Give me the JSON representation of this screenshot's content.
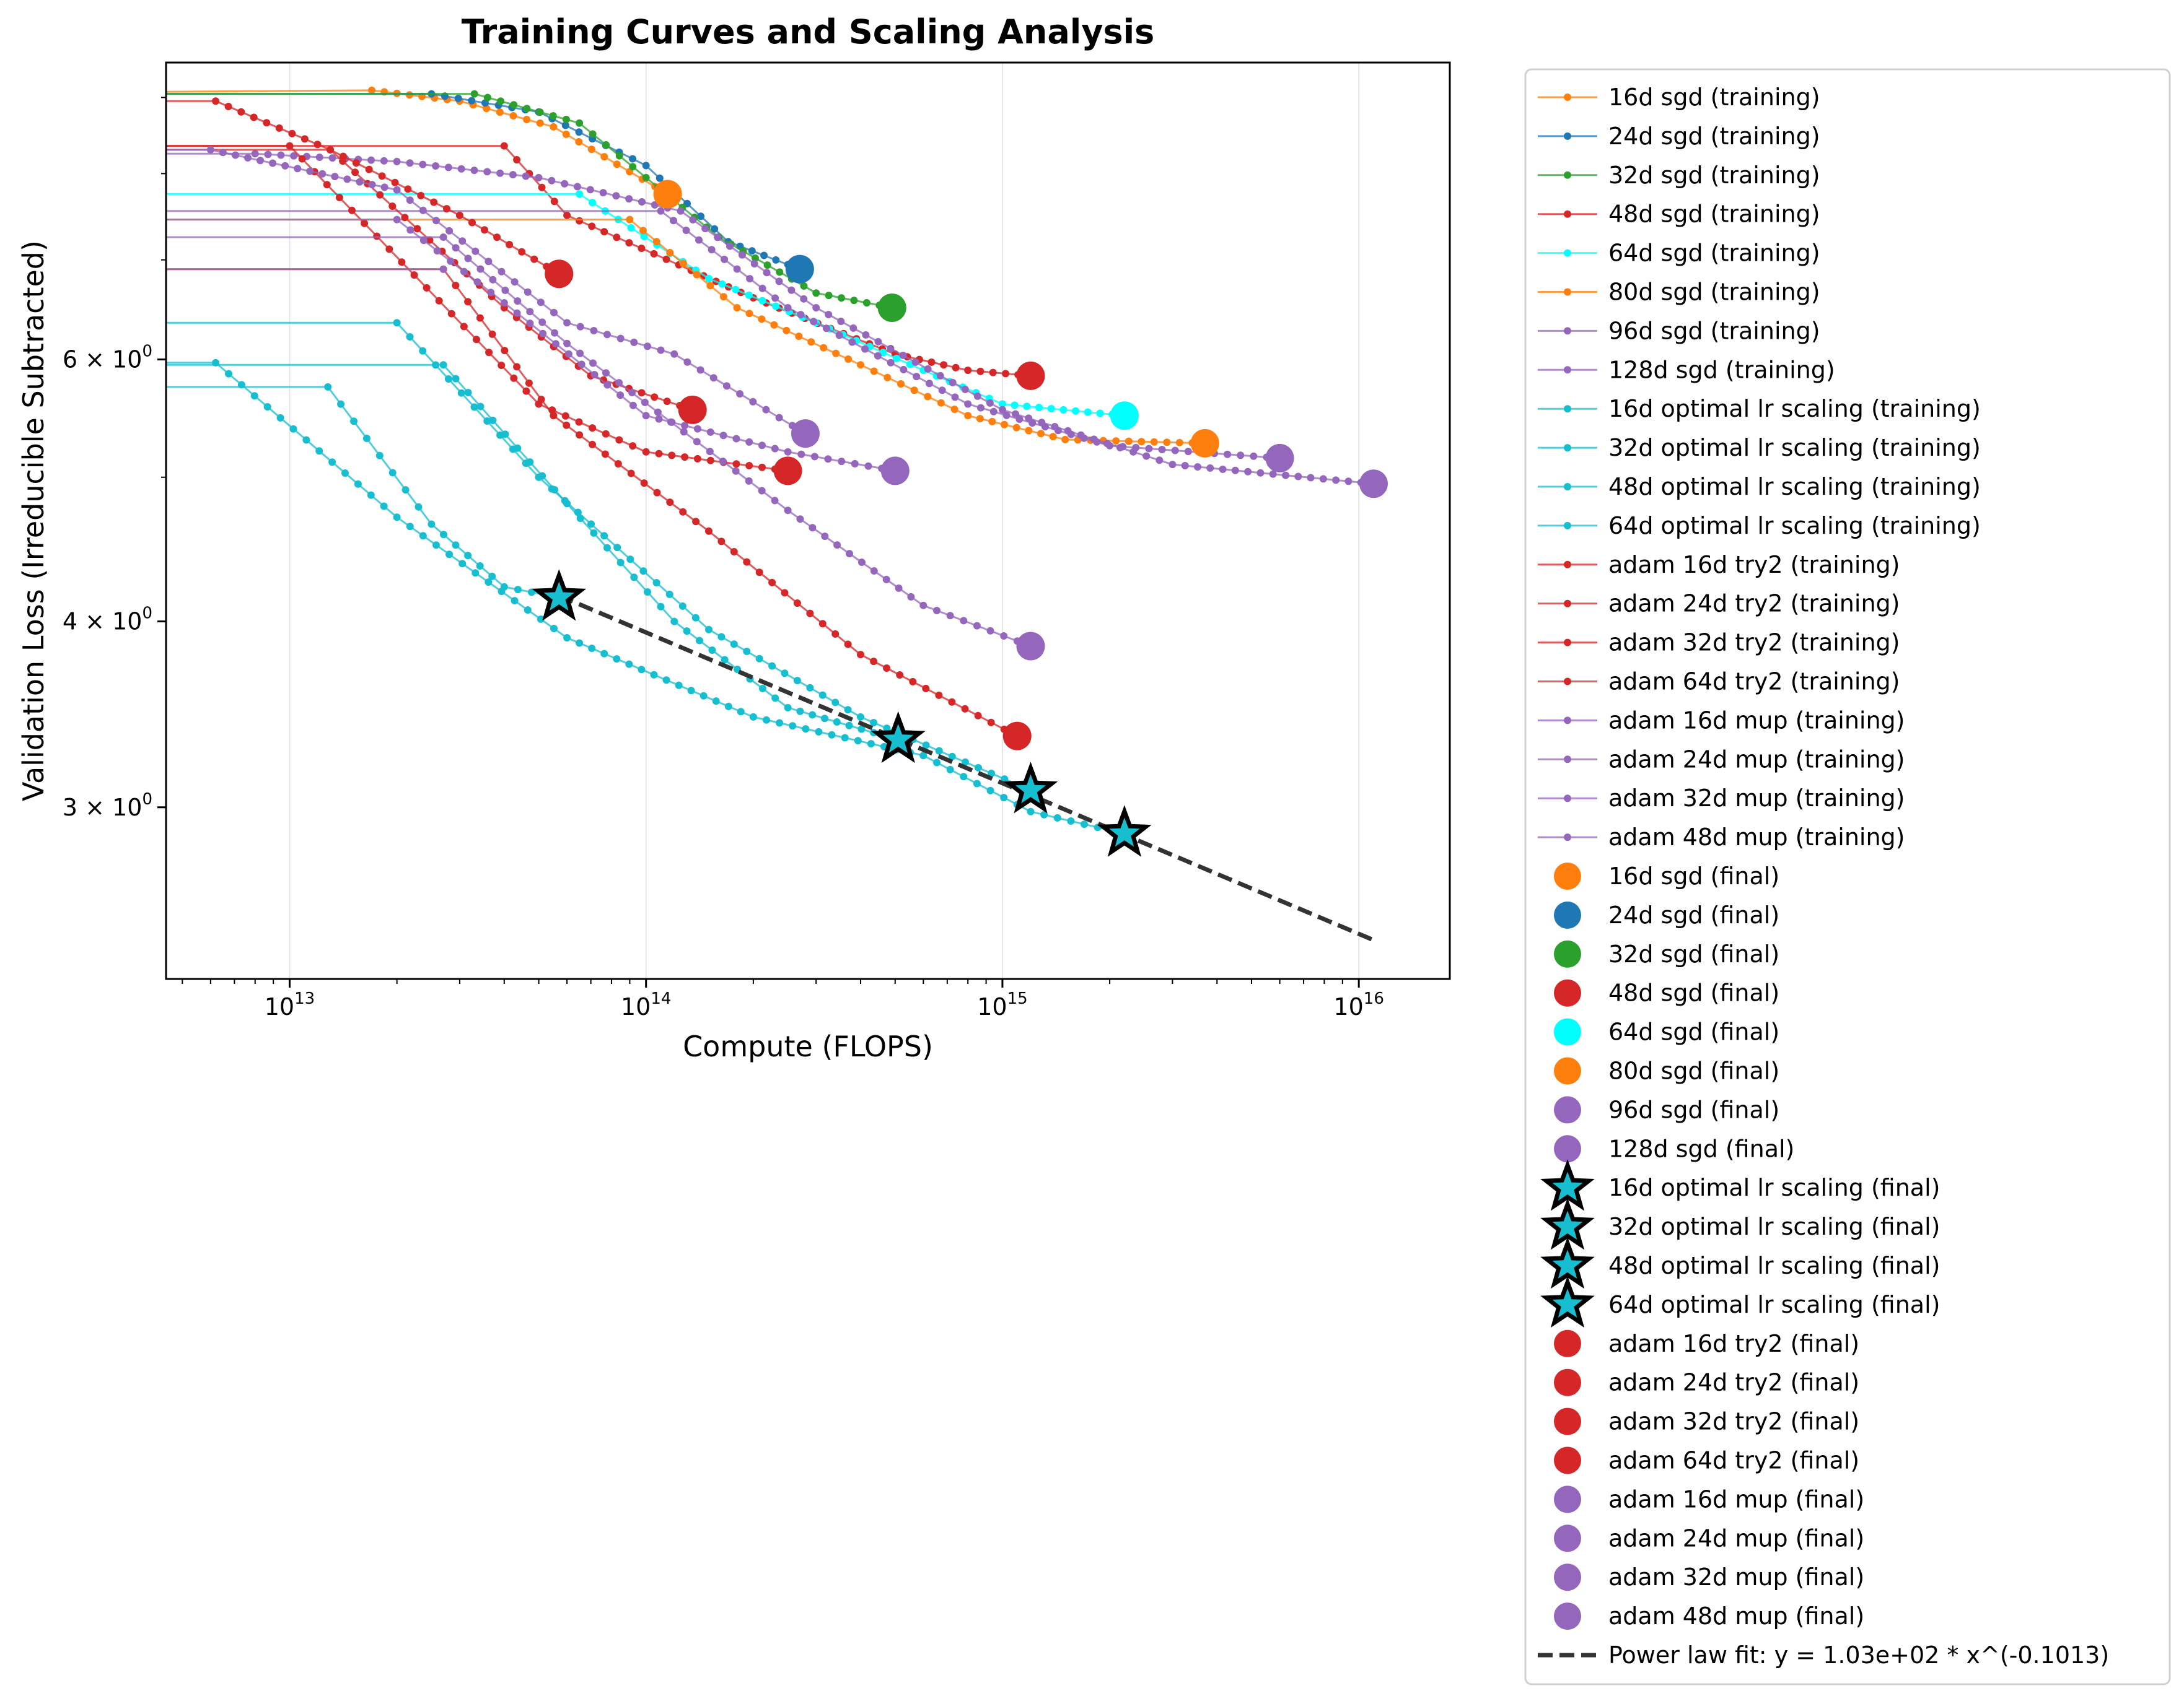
{
  "chart_data": {
    "type": "line",
    "title": "Training Curves and Scaling Analysis",
    "xlabel": "Compute (FLOPS)",
    "ylabel": "Validation Loss (Irreducible Subtracted)",
    "xscale": "log",
    "yscale": "log",
    "xlim": [
      4500000000000.0,
      1.8e+16
    ],
    "ylim": [
      2.3,
      9.5
    ],
    "grid": "x-only",
    "legend_position": "outside-right",
    "x_ticks": [
      {
        "value": 10000000000000.0,
        "base": "10",
        "exp": "13"
      },
      {
        "value": 100000000000000.0,
        "base": "10",
        "exp": "14"
      },
      {
        "value": 1000000000000000.0,
        "base": "10",
        "exp": "15"
      },
      {
        "value": 1e+16,
        "base": "10",
        "exp": "16"
      }
    ],
    "y_ticks": [
      {
        "value": 3,
        "mant": "3",
        "base": "10",
        "exp": "0"
      },
      {
        "value": 4,
        "mant": "4",
        "base": "10",
        "exp": "0"
      },
      {
        "value": 6,
        "mant": "6",
        "base": "10",
        "exp": "0"
      }
    ],
    "y_minor_ticks": [
      5,
      7,
      8,
      9
    ],
    "colors": {
      "orange": "#ff7f0e",
      "blue": "#1f77b4",
      "green": "#2ca02c",
      "red": "#d62728",
      "cyan": "#00ffff",
      "purple": "#9467bd",
      "teal": "#17becf",
      "fit": "#333333"
    },
    "series": [
      {
        "name": "16d sgd (training)",
        "color": "#ff7f0e",
        "anchors": [
          [
            4500000000000.0,
            9.08
          ],
          [
            17000000000000.0,
            9.1
          ],
          [
            30000000000000.0,
            8.95
          ],
          [
            55000000000000.0,
            8.6
          ],
          [
            115000000000000.0,
            7.75
          ]
        ],
        "final": [
          115000000000000.0,
          7.75
        ],
        "final_label": "16d sgd (final)"
      },
      {
        "name": "24d sgd (training)",
        "color": "#1f77b4",
        "anchors": [
          [
            4500000000000.0,
            9.05
          ],
          [
            25000000000000.0,
            9.05
          ],
          [
            50000000000000.0,
            8.8
          ],
          [
            100000000000000.0,
            8.1
          ],
          [
            170000000000000.0,
            7.2
          ],
          [
            270000000000000.0,
            6.9
          ]
        ],
        "final": [
          270000000000000.0,
          6.9
        ],
        "final_label": "24d sgd (final)"
      },
      {
        "name": "32d sgd (training)",
        "color": "#2ca02c",
        "anchors": [
          [
            4500000000000.0,
            9.05
          ],
          [
            33000000000000.0,
            9.05
          ],
          [
            65000000000000.0,
            8.65
          ],
          [
            100000000000000.0,
            7.95
          ],
          [
            160000000000000.0,
            7.25
          ],
          [
            300000000000000.0,
            6.65
          ],
          [
            490000000000000.0,
            6.5
          ]
        ],
        "final": [
          490000000000000.0,
          6.5
        ],
        "final_label": "32d sgd (final)"
      },
      {
        "name": "48d sgd (training)",
        "color": "#d62728",
        "anchors": [
          [
            4500000000000.0,
            8.35
          ],
          [
            40000000000000.0,
            8.35
          ],
          [
            60000000000000.0,
            7.5
          ],
          [
            200000000000000.0,
            6.6
          ],
          [
            500000000000000.0,
            6.05
          ],
          [
            800000000000000.0,
            5.9
          ],
          [
            1200000000000000.0,
            5.85
          ]
        ],
        "final": [
          1200000000000000.0,
          5.85
        ],
        "final_label": "48d sgd (final)"
      },
      {
        "name": "64d sgd (training)",
        "color": "#00ffff",
        "anchors": [
          [
            4500000000000.0,
            7.75
          ],
          [
            65000000000000.0,
            7.75
          ],
          [
            150000000000000.0,
            6.8
          ],
          [
            300000000000000.0,
            6.35
          ],
          [
            600000000000000.0,
            5.9
          ],
          [
            1000000000000000.0,
            5.6
          ],
          [
            2200000000000000.0,
            5.5
          ]
        ],
        "final": [
          2200000000000000.0,
          5.5
        ],
        "final_label": "64d sgd (final)"
      },
      {
        "name": "80d sgd (training)",
        "color": "#ff7f0e",
        "anchors": [
          [
            4500000000000.0,
            7.45
          ],
          [
            90000000000000.0,
            7.45
          ],
          [
            180000000000000.0,
            6.5
          ],
          [
            400000000000000.0,
            5.95
          ],
          [
            800000000000000.0,
            5.5
          ],
          [
            1500000000000000.0,
            5.3
          ],
          [
            3700000000000000.0,
            5.27
          ]
        ],
        "final": [
          3700000000000000.0,
          5.27
        ],
        "final_label": "80d sgd (final)"
      },
      {
        "name": "96d sgd (training)",
        "color": "#9467bd",
        "anchors": [
          [
            4500000000000.0,
            7.55
          ],
          [
            110000000000000.0,
            7.55
          ],
          [
            250000000000000.0,
            6.5
          ],
          [
            800000000000000.0,
            5.6
          ],
          [
            2000000000000000.0,
            5.25
          ],
          [
            6000000000000000.0,
            5.15
          ]
        ],
        "final": [
          6000000000000000.0,
          5.15
        ],
        "final_label": "96d sgd (final)"
      },
      {
        "name": "128d sgd (training)",
        "color": "#9467bd",
        "anchors": [
          [
            4500000000000.0,
            8.25
          ],
          [
            8000000000000.0,
            8.25
          ],
          [
            20000000000000.0,
            8.15
          ],
          [
            50000000000000.0,
            7.95
          ],
          [
            125000000000000.0,
            7.55
          ],
          [
            300000000000000.0,
            6.5
          ],
          [
            1000000000000000.0,
            5.55
          ],
          [
            3000000000000000.0,
            5.1
          ],
          [
            1.1e+16,
            4.95
          ]
        ],
        "final": [
          1.1e+16,
          4.95
        ],
        "final_label": "128d sgd (final)"
      },
      {
        "name": "16d optimal lr scaling (training)",
        "color": "#17becf",
        "anchors": [
          [
            4500000000000.0,
            5.75
          ],
          [
            12800000000000.0,
            5.75
          ],
          [
            25000000000000.0,
            4.65
          ],
          [
            40000000000000.0,
            4.22
          ],
          [
            57000000000000.0,
            4.15
          ]
        ],
        "final": [
          57000000000000.0,
          4.15
        ],
        "final_label": "16d optimal lr scaling (final)"
      },
      {
        "name": "32d optimal lr scaling (training)",
        "color": "#17becf",
        "anchors": [
          [
            4500000000000.0,
            5.95
          ],
          [
            27000000000000.0,
            5.95
          ],
          [
            60000000000000.0,
            4.8
          ],
          [
            120000000000000.0,
            4.0
          ],
          [
            250000000000000.0,
            3.5
          ],
          [
            510000000000000.0,
            3.33
          ]
        ],
        "final": [
          510000000000000.0,
          3.33
        ],
        "final_label": "32d optimal lr scaling (final)"
      },
      {
        "name": "48d optimal lr scaling (training)",
        "color": "#17becf",
        "anchors": [
          [
            4500000000000.0,
            6.35
          ],
          [
            20000000000000.0,
            6.35
          ],
          [
            50000000000000.0,
            5.0
          ],
          [
            150000000000000.0,
            3.95
          ],
          [
            400000000000000.0,
            3.45
          ],
          [
            1200000000000000.0,
            3.08
          ]
        ],
        "final": [
          1200000000000000.0,
          3.08
        ],
        "final_label": "48d optimal lr scaling (final)"
      },
      {
        "name": "64d optimal lr scaling (training)",
        "color": "#17becf",
        "anchors": [
          [
            4500000000000.0,
            5.97
          ],
          [
            6200000000000.0,
            5.97
          ],
          [
            20000000000000.0,
            4.7
          ],
          [
            60000000000000.0,
            3.9
          ],
          [
            200000000000000.0,
            3.45
          ],
          [
            600000000000000.0,
            3.25
          ],
          [
            1200000000000000.0,
            2.98
          ],
          [
            2200000000000000.0,
            2.88
          ]
        ],
        "final": [
          2200000000000000.0,
          2.88
        ],
        "final_label": "64d optimal lr scaling (final)"
      },
      {
        "name": "adam 16d try2 (training)",
        "color": "#d62728",
        "anchors": [
          [
            4500000000000.0,
            8.95
          ],
          [
            6200000000000.0,
            8.95
          ],
          [
            13000000000000.0,
            8.3
          ],
          [
            30000000000000.0,
            7.5
          ],
          [
            57000000000000.0,
            6.85
          ]
        ],
        "final": [
          57000000000000.0,
          6.85
        ],
        "final_label": "adam 16d try2 (final)"
      },
      {
        "name": "adam 24d try2 (training)",
        "color": "#d62728",
        "anchors": [
          [
            4500000000000.0,
            8.3
          ],
          [
            13000000000000.0,
            8.3
          ],
          [
            40000000000000.0,
            6.5
          ],
          [
            70000000000000.0,
            5.85
          ],
          [
            135000000000000.0,
            5.55
          ]
        ],
        "final": [
          135000000000000.0,
          5.55
        ],
        "final_label": "adam 24d try2 (final)"
      },
      {
        "name": "adam 32d try2 (training)",
        "color": "#d62728",
        "anchors": [
          [
            4500000000000.0,
            8.35
          ],
          [
            10000000000000.0,
            8.35
          ],
          [
            50000000000000.0,
            5.6
          ],
          [
            100000000000000.0,
            5.2
          ],
          [
            250000000000000.0,
            5.05
          ]
        ],
        "final": [
          250000000000000.0,
          5.05
        ],
        "final_label": "adam 32d try2 (final)"
      },
      {
        "name": "adam 64d try2 (training)",
        "color": "#d62728",
        "anchors": [
          [
            4500000000000.0,
            6.9
          ],
          [
            27000000000000.0,
            6.9
          ],
          [
            55000000000000.0,
            5.5
          ],
          [
            150000000000000.0,
            4.6
          ],
          [
            400000000000000.0,
            3.8
          ],
          [
            1100000000000000.0,
            3.35
          ]
        ],
        "final": [
          1100000000000000.0,
          3.35
        ],
        "final_label": "adam 64d try2 (final)"
      },
      {
        "name": "adam 16d mup (training)",
        "color": "#9467bd",
        "anchors": [
          [
            4500000000000.0,
            8.3
          ],
          [
            6000000000000.0,
            8.3
          ],
          [
            20000000000000.0,
            7.8
          ],
          [
            60000000000000.0,
            6.35
          ],
          [
            120000000000000.0,
            6.05
          ],
          [
            280000000000000.0,
            5.35
          ]
        ],
        "final": [
          280000000000000.0,
          5.35
        ],
        "final_label": "adam 16d mup (final)"
      },
      {
        "name": "adam 24d mup (training)",
        "color": "#9467bd",
        "anchors": [
          [
            4500000000000.0,
            7.45
          ],
          [
            20000000000000.0,
            7.45
          ],
          [
            40000000000000.0,
            6.55
          ],
          [
            100000000000000.0,
            5.5
          ],
          [
            250000000000000.0,
            5.2
          ],
          [
            500000000000000.0,
            5.05
          ]
        ],
        "final": [
          500000000000000.0,
          5.05
        ],
        "final_label": "adam 24d mup (final)"
      },
      {
        "name": "adam 32d mup (training)",
        "color": "#9467bd",
        "anchors": [
          [
            4500000000000.0,
            7.25
          ],
          [
            27000000000000.0,
            7.25
          ],
          [
            60000000000000.0,
            6.15
          ],
          [
            250000000000000.0,
            4.75
          ],
          [
            600000000000000.0,
            4.1
          ],
          [
            1200000000000000.0,
            3.85
          ]
        ],
        "final": [
          1200000000000000.0,
          3.85
        ],
        "final_label": "adam 32d mup (final)"
      },
      {
        "name": "adam 48d mup (training)",
        "color": "#9467bd",
        "anchors": [
          [
            4500000000000.0,
            6.9
          ],
          [
            27000000000000.0,
            6.9
          ]
        ],
        "final": null,
        "final_label": "adam 48d mup (final)"
      }
    ],
    "fit": {
      "name": "Power law fit: y = 1.03e+02 * x^(-0.1013)",
      "color": "#333333",
      "coef": 103,
      "exponent": -0.1013,
      "x_range": [
        57000000000000.0,
        1.1e+16
      ]
    }
  }
}
